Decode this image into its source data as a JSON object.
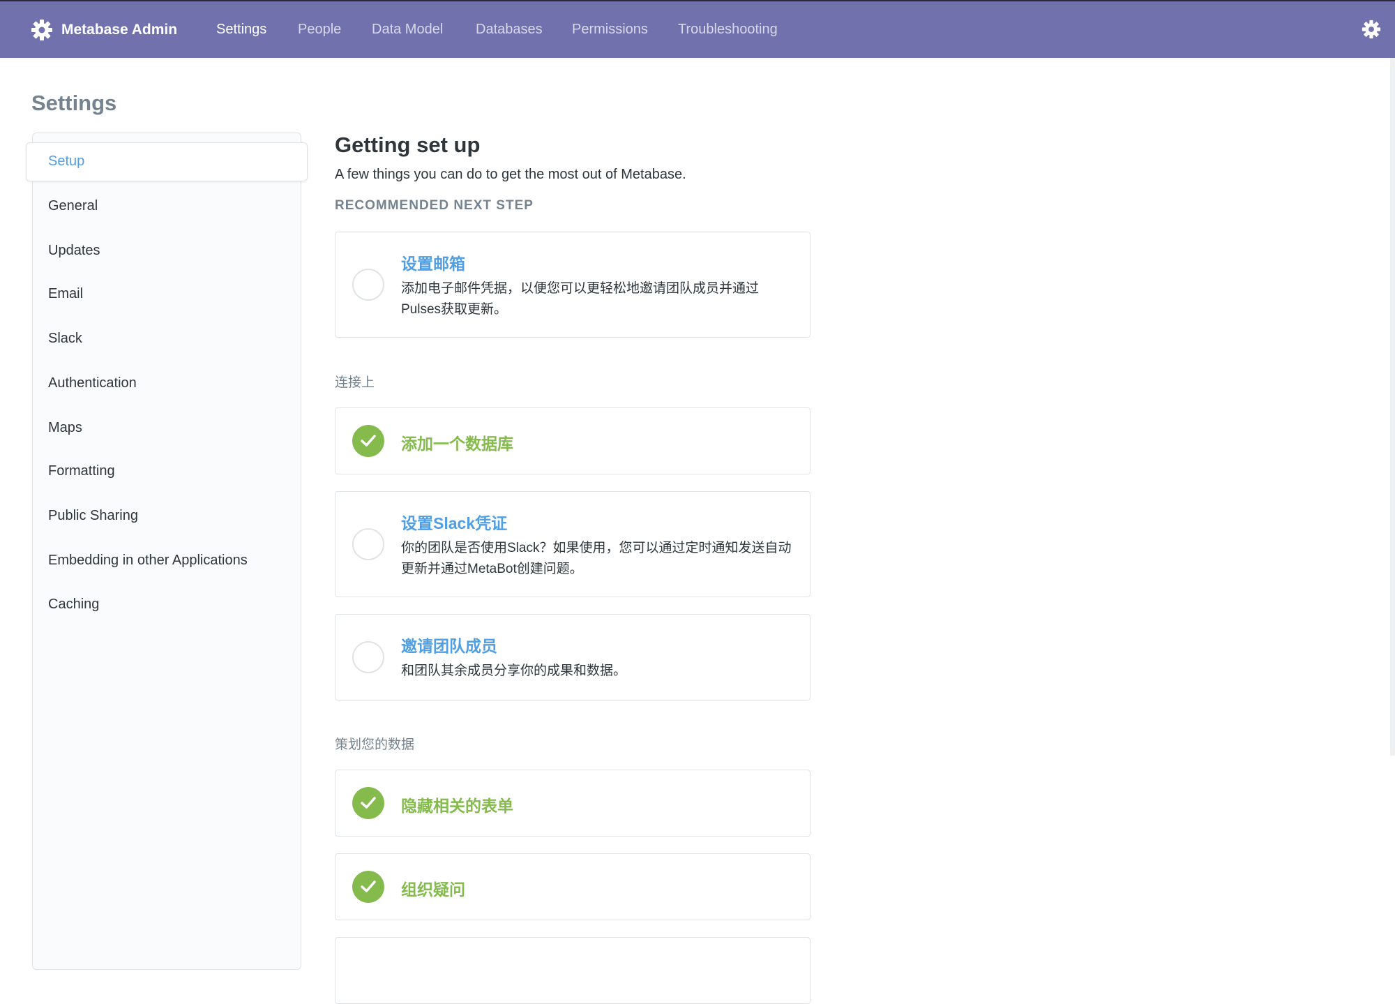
{
  "header": {
    "brand": "Metabase Admin",
    "brand_icon": "gear-icon",
    "nav": [
      {
        "label": "Settings",
        "active": true
      },
      {
        "label": "People"
      },
      {
        "label": "Data Model"
      },
      {
        "label": "Databases"
      },
      {
        "label": "Permissions"
      },
      {
        "label": "Troubleshooting"
      }
    ],
    "settings_icon": "gear-icon",
    "color": "#7172ad"
  },
  "page_title": "Settings",
  "sidebar": {
    "selected": "Setup",
    "items": [
      "General",
      "Updates",
      "Email",
      "Slack",
      "Authentication",
      "Maps",
      "Formatting",
      "Public Sharing",
      "Embedding in other Applications",
      "Caching"
    ]
  },
  "main": {
    "title": "Getting set up",
    "subtitle": "A few things you can do to get the most out of Metabase.",
    "recommended_label": "RECOMMENDED NEXT STEP",
    "section_connect": "连接上",
    "section_curate": "策划您的数据",
    "tasks": [
      {
        "title": "设置邮箱",
        "desc": "添加电子邮件凭据，以便您可以更轻松地邀请团队成员并通过Pulses获取更新。",
        "done": false
      },
      {
        "title": "添加一个数据库",
        "done": true
      },
      {
        "title": "设置Slack凭证",
        "desc": "你的团队是否使用Slack？如果使用，您可以通过定时通知发送自动更新并通过MetaBot创建问题。",
        "done": false
      },
      {
        "title": "邀请团队成员",
        "desc": "和团队其余成员分享你的成果和数据。",
        "done": false
      },
      {
        "title": "隐藏相关的表单",
        "done": true
      },
      {
        "title": "组织疑问",
        "done": true
      }
    ]
  },
  "colors": {
    "accent": "#509ee3",
    "success": "#84bb4c",
    "muted": "#74838f"
  }
}
